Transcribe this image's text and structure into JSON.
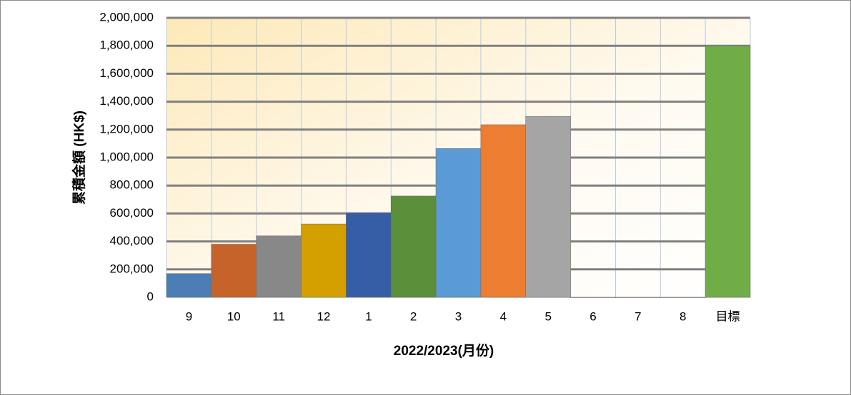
{
  "chart_data": {
    "type": "bar",
    "x_label": "2022/2023(月份)",
    "y_label": "累積金額 (HK$)",
    "categories": [
      "9",
      "10",
      "11",
      "12",
      "1",
      "2",
      "3",
      "4",
      "5",
      "6",
      "7",
      "8",
      "目標"
    ],
    "values": [
      170000,
      380000,
      440000,
      525000,
      605000,
      725000,
      1065000,
      1235000,
      1295000,
      0,
      0,
      0,
      1800000
    ],
    "colors": [
      "#4a7eb4",
      "#c5632a",
      "#888888",
      "#d4a000",
      "#355ea6",
      "#5b8f3a",
      "#5b9bd5",
      "#ed7d31",
      "#a5a5a5",
      "#3a6ea8",
      "#b06030",
      "#808080",
      "#70ad47"
    ],
    "ylim": [
      0,
      2000000
    ],
    "yticks": [
      0,
      {
        "value": 200000,
        "label": "200,000"
      },
      {
        "value": 400000,
        "label": "400,000"
      },
      {
        "value": 600000,
        "label": "600,000"
      },
      {
        "value": 800000,
        "label": "800,000"
      },
      {
        "value": 1000000,
        "label": "1,000,000"
      },
      {
        "value": 1200000,
        "label": "1,200,000"
      },
      {
        "value": 1400000,
        "label": "1,400,000"
      },
      {
        "value": 1600000,
        "label": "1,600,000"
      },
      {
        "value": 1800000,
        "label": "1,800,000"
      },
      {
        "value": 2000000,
        "label": "2,000,000"
      }
    ],
    "grid": true
  }
}
